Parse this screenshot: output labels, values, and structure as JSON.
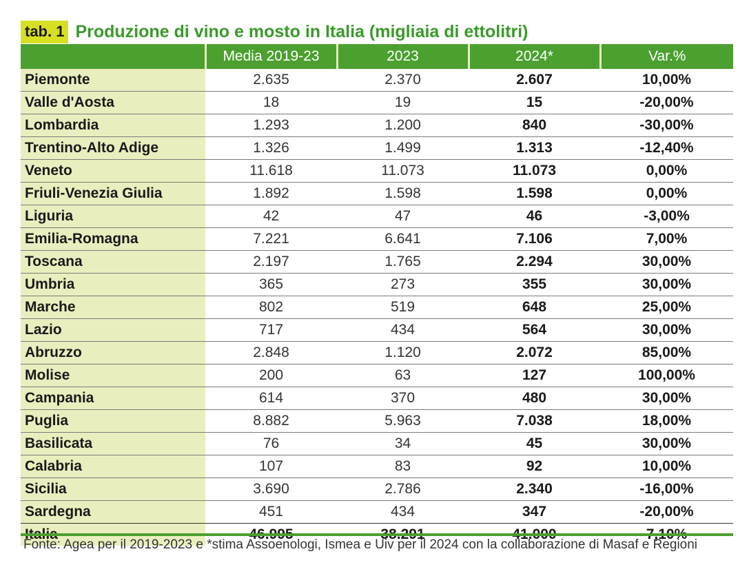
{
  "header": {
    "tab_label": "tab. 1",
    "title": "Produzione di vino e mosto in Italia (migliaia di ettolitri)"
  },
  "columns": [
    "",
    "Media 2019-23",
    "2023",
    "2024*",
    "Var.%"
  ],
  "rows": [
    {
      "region": "Piemonte",
      "media": "2.635",
      "y2023": "2.370",
      "y2024": "2.607",
      "var": "10,00%"
    },
    {
      "region": "Valle d'Aosta",
      "media": "18",
      "y2023": "19",
      "y2024": "15",
      "var": "-20,00%"
    },
    {
      "region": "Lombardia",
      "media": "1.293",
      "y2023": "1.200",
      "y2024": "840",
      "var": "-30,00%"
    },
    {
      "region": "Trentino-Alto Adige",
      "media": "1.326",
      "y2023": "1.499",
      "y2024": "1.313",
      "var": "-12,40%"
    },
    {
      "region": "Veneto",
      "media": "11.618",
      "y2023": "11.073",
      "y2024": "11.073",
      "var": "0,00%"
    },
    {
      "region": "Friuli-Venezia Giulia",
      "media": "1.892",
      "y2023": "1.598",
      "y2024": "1.598",
      "var": "0,00%"
    },
    {
      "region": "Liguria",
      "media": "42",
      "y2023": "47",
      "y2024": "46",
      "var": "-3,00%"
    },
    {
      "region": "Emilia-Romagna",
      "media": "7.221",
      "y2023": "6.641",
      "y2024": "7.106",
      "var": "7,00%"
    },
    {
      "region": "Toscana",
      "media": "2.197",
      "y2023": "1.765",
      "y2024": "2.294",
      "var": "30,00%"
    },
    {
      "region": "Umbria",
      "media": "365",
      "y2023": "273",
      "y2024": "355",
      "var": "30,00%"
    },
    {
      "region": "Marche",
      "media": "802",
      "y2023": "519",
      "y2024": "648",
      "var": "25,00%"
    },
    {
      "region": "Lazio",
      "media": "717",
      "y2023": "434",
      "y2024": "564",
      "var": "30,00%"
    },
    {
      "region": "Abruzzo",
      "media": "2.848",
      "y2023": "1.120",
      "y2024": "2.072",
      "var": "85,00%"
    },
    {
      "region": "Molise",
      "media": "200",
      "y2023": "63",
      "y2024": "127",
      "var": "100,00%"
    },
    {
      "region": "Campania",
      "media": "614",
      "y2023": "370",
      "y2024": "480",
      "var": "30,00%"
    },
    {
      "region": "Puglia",
      "media": "8.882",
      "y2023": "5.963",
      "y2024": "7.038",
      "var": "18,00%"
    },
    {
      "region": "Basilicata",
      "media": "76",
      "y2023": "34",
      "y2024": "45",
      "var": "30,00%"
    },
    {
      "region": "Calabria",
      "media": "107",
      "y2023": "83",
      "y2024": "92",
      "var": "10,00%"
    },
    {
      "region": "Sicilia",
      "media": "3.690",
      "y2023": "2.786",
      "y2024": "2.340",
      "var": "-16,00%"
    },
    {
      "region": "Sardegna",
      "media": "451",
      "y2023": "434",
      "y2024": "347",
      "var": "-20,00%"
    }
  ],
  "total": {
    "region": "Italia",
    "media": "46.995",
    "y2023": "38.291",
    "y2024": "41.000",
    "var": "7,10%"
  },
  "source": "Fonte: Agea per il 2019-2023 e *stima Assoenologi, Ismea e Uiv per il 2024 con la collaborazione di Masaf e Regioni",
  "colors": {
    "green": "#4ba02f",
    "title_green": "#3a9a2a",
    "badge": "#d7df23",
    "region_bg": "#eaeebe"
  }
}
